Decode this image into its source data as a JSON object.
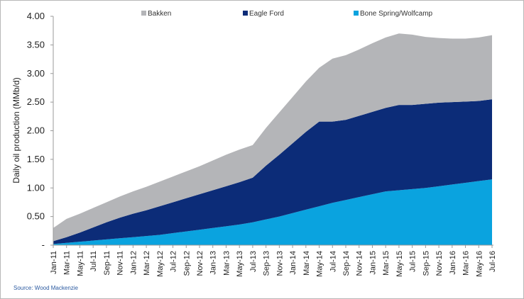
{
  "chart_data": {
    "type": "area",
    "stacked": true,
    "ylabel": "Daily oil production (MMb/d)",
    "ylim": [
      0,
      4.0
    ],
    "yticks": [
      "4.00",
      "3.50",
      "3.00",
      "2.50",
      "2.00",
      "1.50",
      "1.00",
      "0.50",
      "-"
    ],
    "ytick_values": [
      4.0,
      3.5,
      3.0,
      2.5,
      2.0,
      1.5,
      1.0,
      0.5,
      0.0
    ],
    "categories": [
      "Jan-11",
      "Mar-11",
      "May-11",
      "Jul-11",
      "Sep-11",
      "Nov-11",
      "Jan-12",
      "Mar-12",
      "May-12",
      "Jul-12",
      "Sep-12",
      "Nov-12",
      "Jan-13",
      "Mar-13",
      "May-13",
      "Jul-13",
      "Sep-13",
      "Nov-13",
      "Jan-14",
      "Mar-14",
      "May-14",
      "Jul-14",
      "Sep-14",
      "Nov-14",
      "Jan-15",
      "Mar-15",
      "May-15",
      "Jul-15",
      "Sep-15",
      "Nov-15",
      "Jan-16",
      "Mar-16",
      "May-16",
      "Jul-16"
    ],
    "legend_position": "top",
    "grid": false,
    "series": [
      {
        "name": "Bone Spring/Wolfcamp",
        "color": "#0aa3df",
        "values": [
          0.02,
          0.04,
          0.06,
          0.08,
          0.1,
          0.12,
          0.14,
          0.16,
          0.18,
          0.21,
          0.24,
          0.27,
          0.3,
          0.33,
          0.36,
          0.4,
          0.45,
          0.5,
          0.56,
          0.62,
          0.68,
          0.74,
          0.79,
          0.84,
          0.89,
          0.94,
          0.96,
          0.98,
          1.0,
          1.03,
          1.06,
          1.09,
          1.12,
          1.15
        ]
      },
      {
        "name": "Eagle Ford",
        "color": "#0c2c78",
        "values": [
          0.05,
          0.1,
          0.16,
          0.23,
          0.3,
          0.36,
          0.41,
          0.45,
          0.5,
          0.54,
          0.58,
          0.62,
          0.66,
          0.7,
          0.74,
          0.78,
          0.94,
          1.08,
          1.22,
          1.36,
          1.48,
          1.42,
          1.4,
          1.42,
          1.44,
          1.46,
          1.49,
          1.47,
          1.47,
          1.46,
          1.44,
          1.42,
          1.4,
          1.4
        ]
      },
      {
        "name": "Bakken",
        "color": "#b4b5b8",
        "values": [
          0.23,
          0.32,
          0.33,
          0.34,
          0.35,
          0.37,
          0.39,
          0.41,
          0.43,
          0.45,
          0.47,
          0.49,
          0.52,
          0.55,
          0.57,
          0.57,
          0.66,
          0.74,
          0.81,
          0.88,
          0.94,
          1.1,
          1.13,
          1.16,
          1.2,
          1.23,
          1.25,
          1.23,
          1.17,
          1.13,
          1.11,
          1.1,
          1.11,
          1.12
        ]
      }
    ],
    "legend": [
      {
        "name": "Bakken",
        "color": "#b4b5b8"
      },
      {
        "name": "Eagle Ford",
        "color": "#0c2c78"
      },
      {
        "name": "Bone Spring/Wolfcamp",
        "color": "#0aa3df"
      }
    ]
  },
  "source": "Source: Wood Mackenzie"
}
